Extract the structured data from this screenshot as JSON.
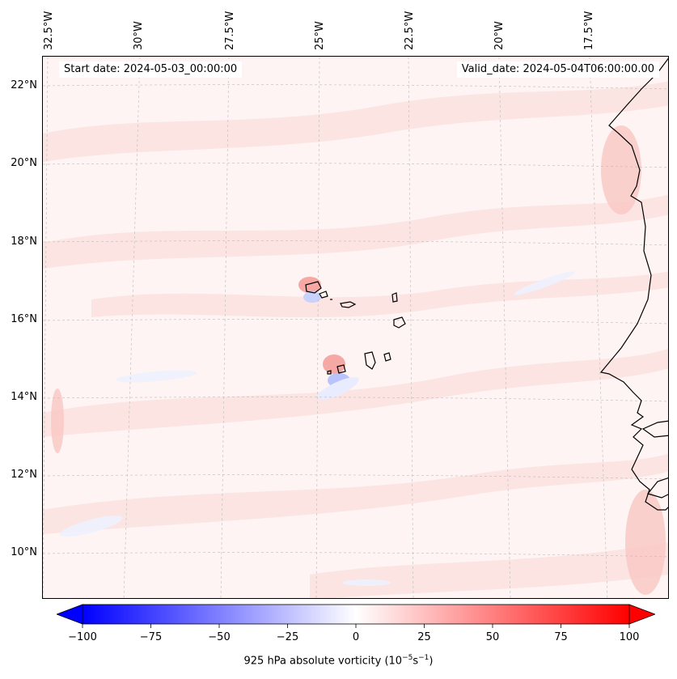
{
  "map": {
    "start_date": "Start date: 2024-05-03_00:00:00",
    "valid_date": "Valid_date: 2024-05-04T06:00:00.00",
    "lat_labels": [
      "22°N",
      "20°N",
      "18°N",
      "16°N",
      "14°N",
      "12°N",
      "10°N"
    ],
    "lon_labels": [
      "32.5°W",
      "30°W",
      "27.5°W",
      "25°W",
      "22.5°W",
      "20°W",
      "17.5°W"
    ],
    "field_colors": {
      "background": "#fdf4f3",
      "positive_light": "#fde2e0",
      "positive_mid": "#f9c2be",
      "negative_light": "#eaeefe",
      "negative_mid": "#c9d1fd",
      "coast": "#000000"
    }
  },
  "colorbar": {
    "ticks": [
      "−100",
      "−75",
      "−50",
      "−25",
      "0",
      "25",
      "50",
      "75",
      "100"
    ],
    "label_main": "925 hPa absolute vorticity (10",
    "label_exp1": "−5",
    "label_mid": "s",
    "label_exp2": "−1",
    "label_end": ")",
    "min_color": "#0000ff",
    "mid_color": "#ffffff",
    "max_color": "#ff0000"
  }
}
